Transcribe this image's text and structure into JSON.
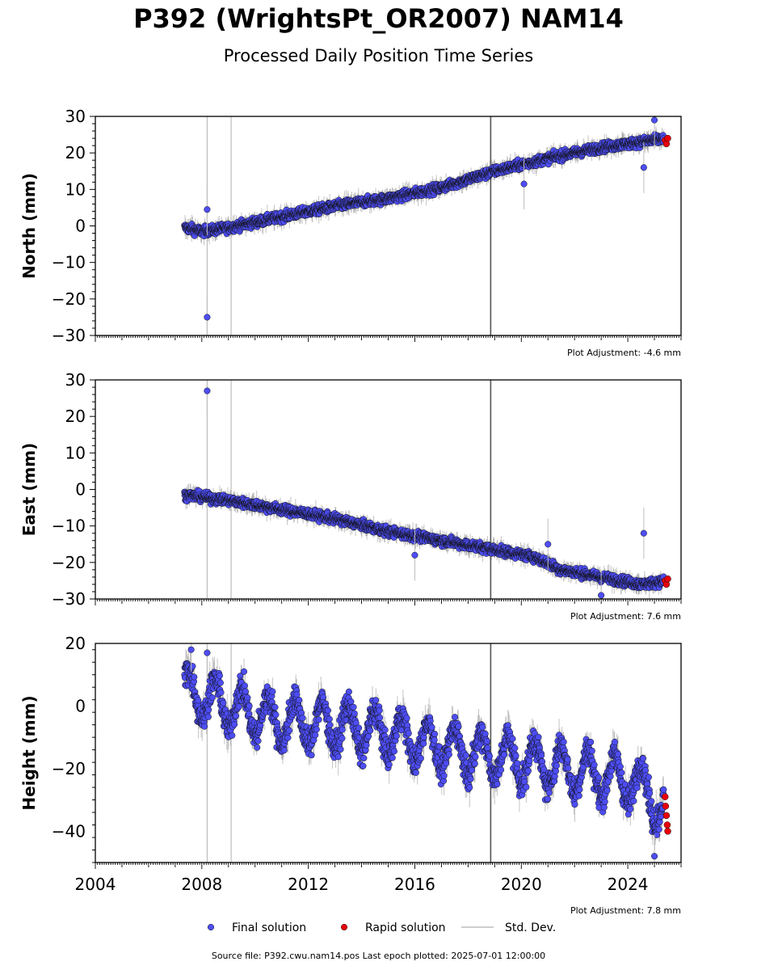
{
  "title": "P392 (WrightsPt_OR2007) NAM14",
  "subtitle": "Processed Daily Position Time Series",
  "footer": "Source file: P392.cwu.nam14.pos  Last epoch plotted: 2025-07-01 12:00:00",
  "legend": {
    "final_label": "Final solution",
    "rapid_label": "Rapid solution",
    "std_label": "Std. Dev."
  },
  "colors": {
    "final": "#4d4df5",
    "rapid": "#e8000b",
    "std_dev": "#bdbdbd",
    "std_dev_dark": "#555555"
  },
  "chart_data": [
    {
      "type": "scatter",
      "ylabel": "North (mm)",
      "ylim": [
        -30,
        30
      ],
      "yticks": [
        -30,
        -20,
        -10,
        0,
        10,
        20,
        30
      ],
      "xlim": [
        2004,
        2026
      ],
      "adjustment": "Plot Adjustment: -4.6 mm",
      "series": [
        {
          "name": "Final solution",
          "trend": [
            [
              2007.4,
              -0.5
            ],
            [
              2008.0,
              -1.5
            ],
            [
              2009.0,
              -0.5
            ],
            [
              2010.0,
              1.0
            ],
            [
              2012.0,
              4.0
            ],
            [
              2013.5,
              6.0
            ],
            [
              2015.0,
              7.5
            ],
            [
              2017.0,
              10.5
            ],
            [
              2019.0,
              15.0
            ],
            [
              2021.0,
              18.5
            ],
            [
              2023.0,
              21.5
            ],
            [
              2025.5,
              24.0
            ]
          ],
          "outliers": [
            [
              2008.2,
              -25.0
            ],
            [
              2008.2,
              4.5
            ],
            [
              2024.6,
              16.0
            ],
            [
              2020.1,
              11.5
            ],
            [
              2025.0,
              29.0
            ]
          ]
        },
        {
          "name": "Rapid solution",
          "points": [
            [
              2025.4,
              23.5
            ],
            [
              2025.45,
              22.5
            ],
            [
              2025.5,
              24.0
            ]
          ]
        }
      ]
    },
    {
      "type": "scatter",
      "ylabel": "East (mm)",
      "ylim": [
        -30,
        30
      ],
      "yticks": [
        -30,
        -20,
        -10,
        0,
        10,
        20,
        30
      ],
      "xlim": [
        2004,
        2026
      ],
      "adjustment": "Plot Adjustment: 7.6 mm",
      "series": [
        {
          "name": "Final solution",
          "trend": [
            [
              2007.4,
              -1.5
            ],
            [
              2009.0,
              -3.0
            ],
            [
              2011.0,
              -5.5
            ],
            [
              2013.0,
              -8.0
            ],
            [
              2015.0,
              -11.5
            ],
            [
              2017.0,
              -14.0
            ],
            [
              2019.0,
              -16.5
            ],
            [
              2020.5,
              -18.5
            ],
            [
              2021.5,
              -22.0
            ],
            [
              2023.0,
              -24.0
            ],
            [
              2024.5,
              -26.0
            ],
            [
              2025.5,
              -25.0
            ]
          ],
          "outliers": [
            [
              2008.2,
              27.0
            ],
            [
              2024.6,
              -12.0
            ],
            [
              2023.0,
              -29.0
            ],
            [
              2016.0,
              -18.0
            ],
            [
              2021.0,
              -15.0
            ]
          ]
        },
        {
          "name": "Rapid solution",
          "points": [
            [
              2025.4,
              -25.0
            ],
            [
              2025.45,
              -26.0
            ],
            [
              2025.5,
              -24.5
            ]
          ]
        }
      ]
    },
    {
      "type": "scatter",
      "ylabel": "Height (mm)",
      "ylim": [
        -50,
        20
      ],
      "yticks": [
        -40,
        -20,
        0,
        20
      ],
      "xlim": [
        2004,
        2026
      ],
      "xticks": [
        2004,
        2008,
        2012,
        2016,
        2020,
        2024
      ],
      "adjustment": "Plot Adjustment: 7.8 mm",
      "series": [
        {
          "name": "Final solution",
          "trend": [
            [
              2007.4,
              5.0
            ],
            [
              2009.0,
              0.0
            ],
            [
              2011.0,
              -5.0
            ],
            [
              2013.0,
              -6.0
            ],
            [
              2015.0,
              -9.0
            ],
            [
              2017.0,
              -13.0
            ],
            [
              2019.0,
              -16.0
            ],
            [
              2021.0,
              -19.0
            ],
            [
              2023.0,
              -22.0
            ],
            [
              2024.5,
              -25.0
            ],
            [
              2025.5,
              -35.0
            ]
          ],
          "annual_amplitude": 7,
          "outliers": [
            [
              2008.2,
              17.0
            ],
            [
              2007.6,
              18.0
            ],
            [
              2025.0,
              -48.0
            ]
          ]
        },
        {
          "name": "Rapid solution",
          "points": [
            [
              2025.4,
              -29.0
            ],
            [
              2025.42,
              -32.0
            ],
            [
              2025.45,
              -35.0
            ],
            [
              2025.48,
              -38.0
            ],
            [
              2025.5,
              -40.0
            ]
          ]
        }
      ]
    }
  ],
  "std_dev_vlines": [
    2008.2,
    2009.1,
    2018.85
  ]
}
